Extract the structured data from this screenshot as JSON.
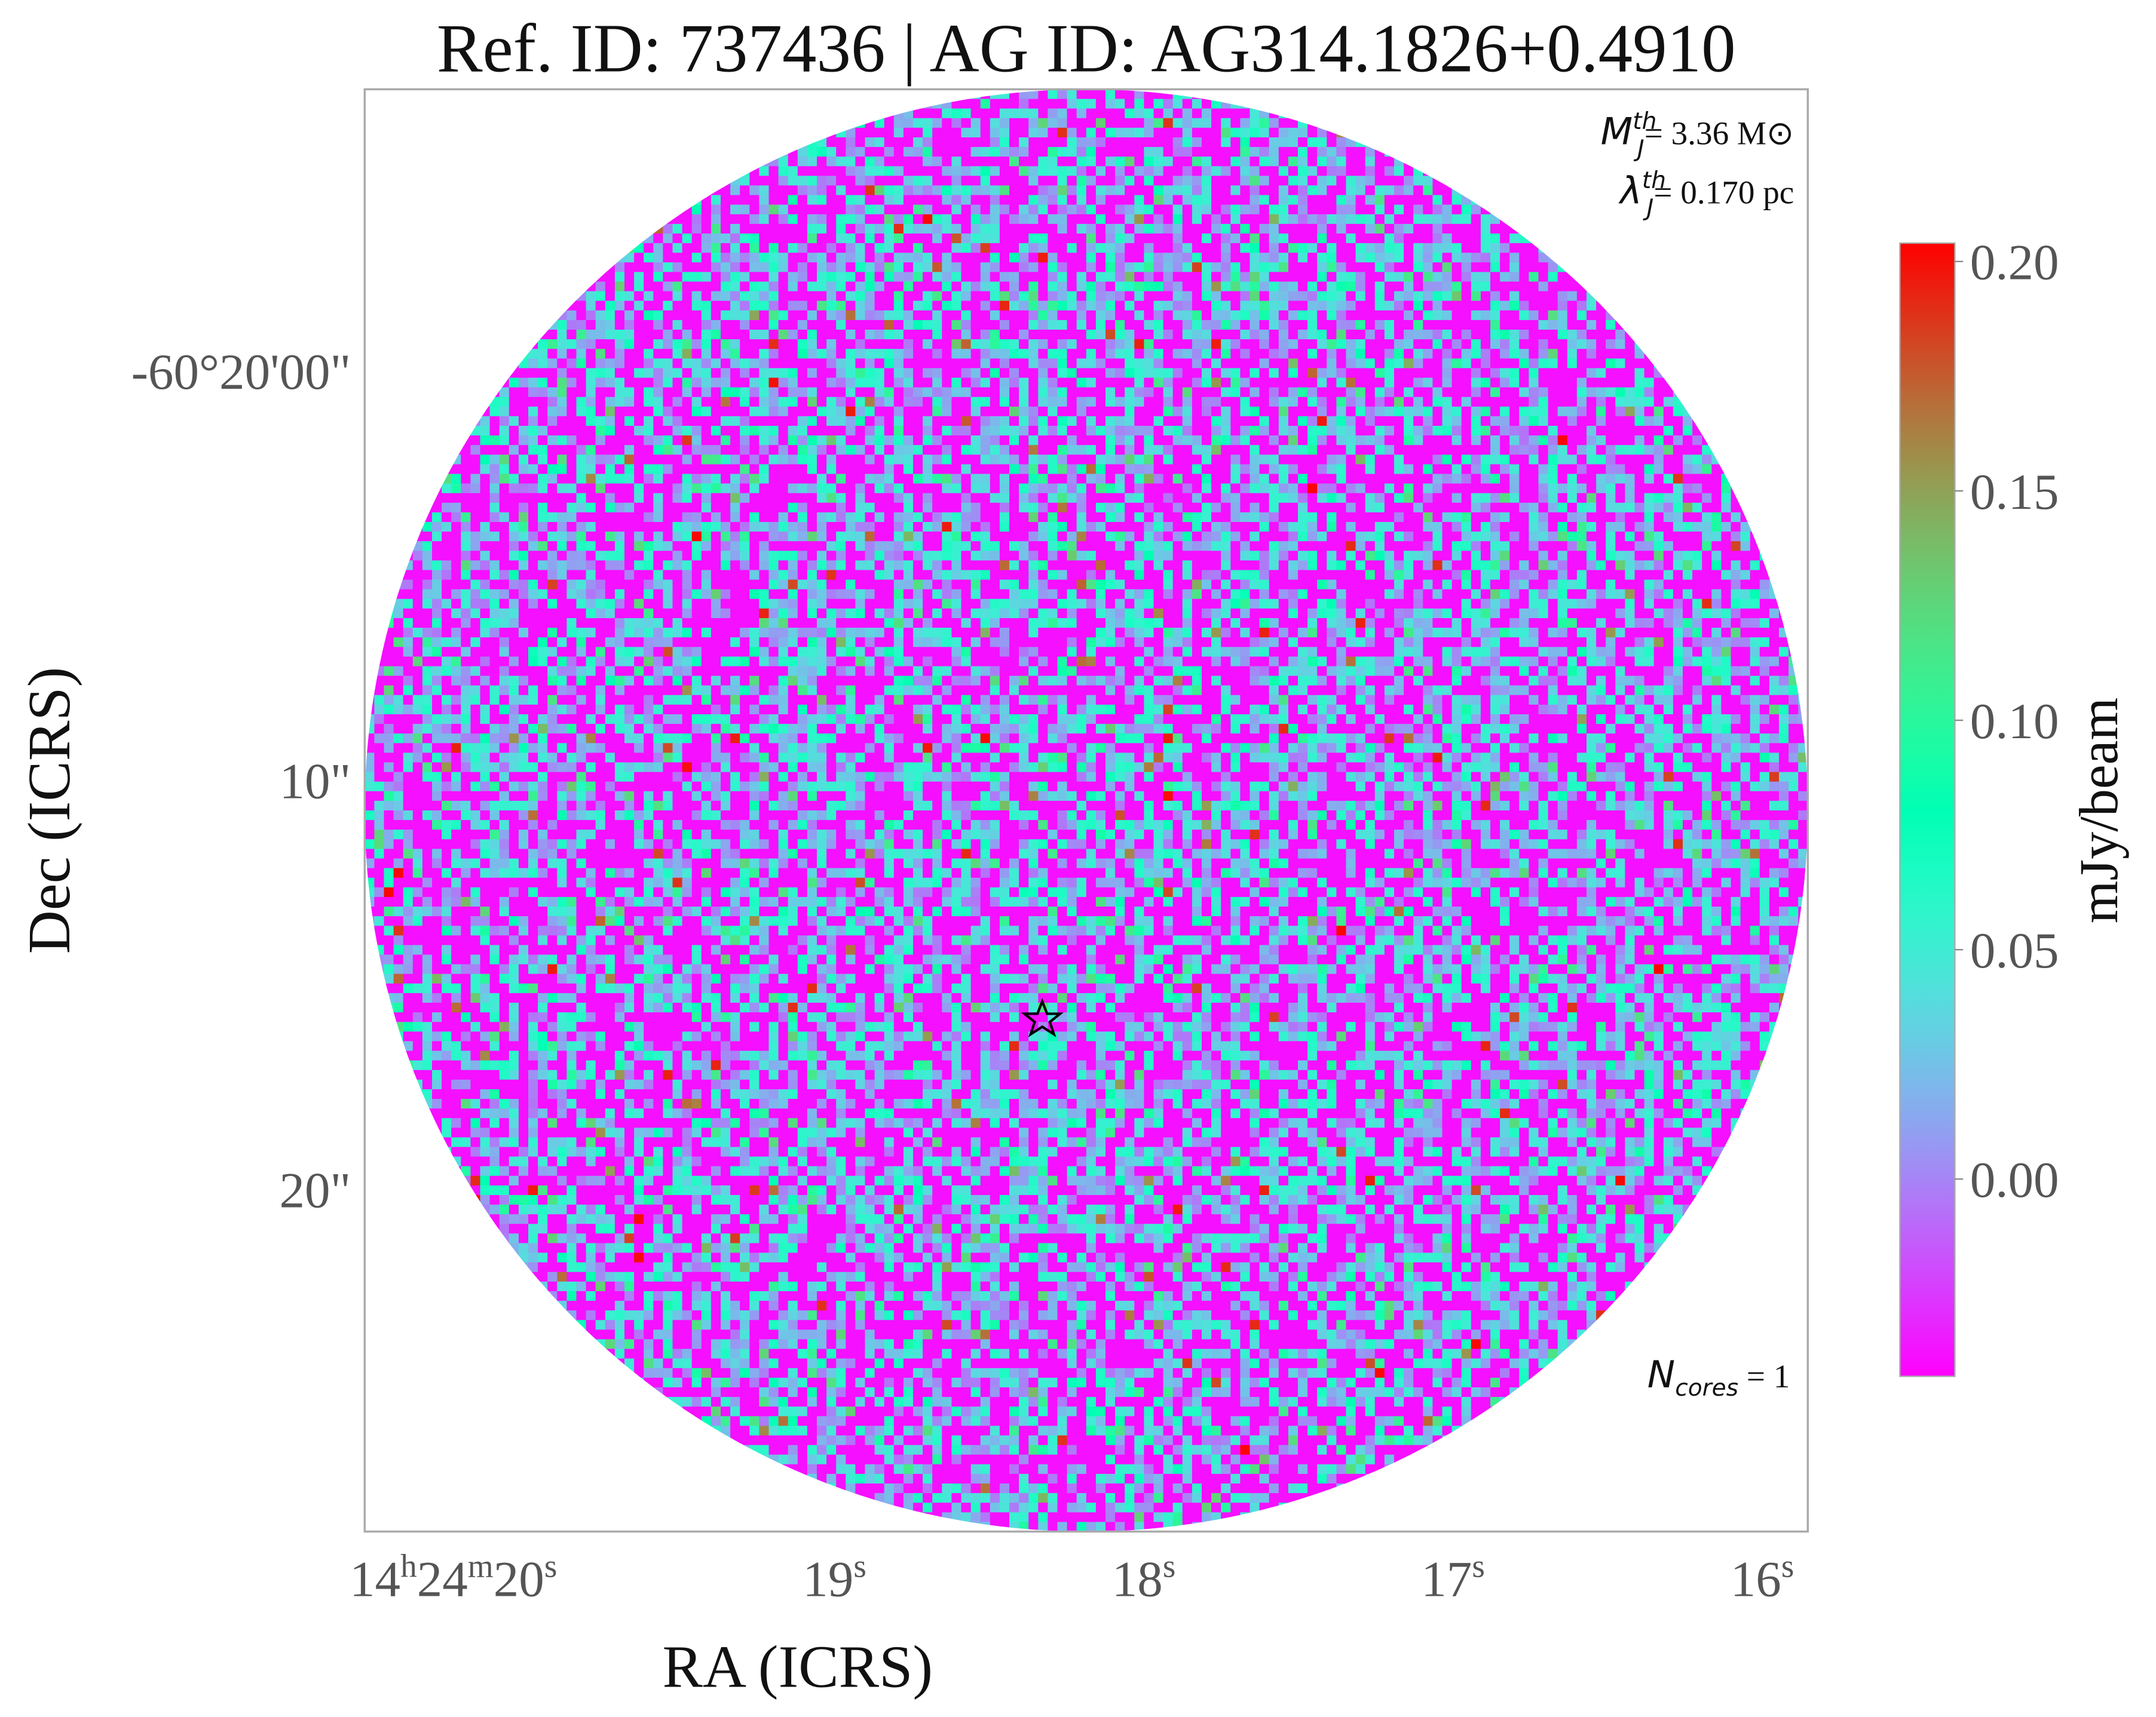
{
  "chart_data": {
    "type": "image",
    "title": "Ref. ID: 737436 | AG ID: AG314.1826+0.4910",
    "x_label": "RA (ICRS)",
    "y_label": "Dec (ICRS)",
    "xticks": [
      "14h24m20s",
      "19s",
      "18s",
      "17s",
      "16s"
    ],
    "yticks": [
      "-60°20'00\"",
      "10\"",
      "20\""
    ],
    "annotations": [
      {
        "symbol": "M",
        "sub": "J",
        "sup": "th",
        "text": "= 3.36 M⊙"
      },
      {
        "symbol": "λ",
        "sub": "J",
        "sup": "th",
        "text": "= 0.170 pc"
      },
      {
        "symbol": "N",
        "sub": "cores",
        "text": " = 1"
      }
    ],
    "colorbar_label": "mJy/beam",
    "clim": [
      -0.043,
      0.204
    ],
    "cticks": [
      {
        "value": 0,
        "label": "0.00"
      },
      0.05,
      {
        "value": 0.1,
        "label": "0.10"
      },
      0.15,
      {
        "value": 0.2,
        "label": "0.20"
      }
    ],
    "colormap": "rainbow"
  }
}
